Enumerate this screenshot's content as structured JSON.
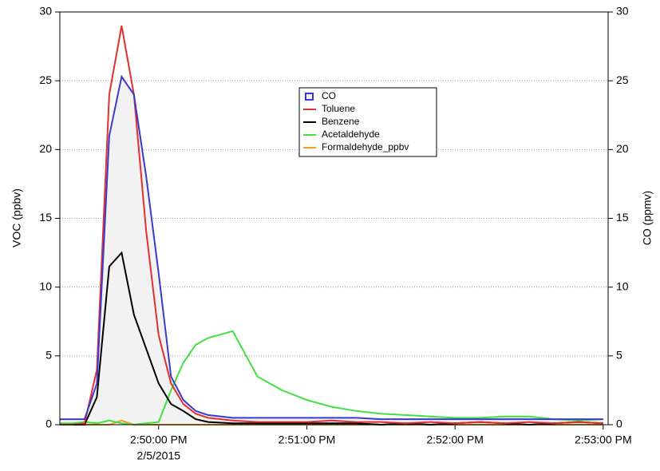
{
  "chart_data": {
    "type": "line",
    "y_label": "VOC (ppbv)",
    "y2_label": "CO (ppmv)",
    "x_date_label": "2/5/2015",
    "x": [
      "2:49:20 PM",
      "2:49:25 PM",
      "2:49:30 PM",
      "2:49:35 PM",
      "2:49:40 PM",
      "2:49:45 PM",
      "2:49:50 PM",
      "2:49:55 PM",
      "2:50:00 PM",
      "2:50:05 PM",
      "2:50:10 PM",
      "2:50:15 PM",
      "2:50:20 PM",
      "2:50:30 PM",
      "2:50:40 PM",
      "2:50:50 PM",
      "2:51:00 PM",
      "2:51:10 PM",
      "2:51:20 PM",
      "2:51:30 PM",
      "2:51:40 PM",
      "2:51:50 PM",
      "2:52:00 PM",
      "2:52:10 PM",
      "2:52:20 PM",
      "2:52:30 PM",
      "2:52:40 PM",
      "2:52:50 PM",
      "2:53:00 PM"
    ],
    "series": [
      {
        "name": "CO",
        "color": "#3a3acc",
        "fill": "#f2f2f2",
        "axis": "y2",
        "values": [
          0.4,
          0.4,
          0.4,
          3,
          21,
          25.3,
          24,
          18,
          11,
          3.5,
          1.8,
          1,
          0.7,
          0.5,
          0.5,
          0.5,
          0.5,
          0.5,
          0.5,
          0.4,
          0.4,
          0.4,
          0.4,
          0.4,
          0.4,
          0.4,
          0.4,
          0.4,
          0.4
        ]
      },
      {
        "name": "Toluene",
        "color": "#e03030",
        "values": [
          0,
          0,
          0.1,
          4,
          24,
          29,
          24,
          14,
          6.5,
          3,
          1.5,
          0.8,
          0.5,
          0.3,
          0.2,
          0.2,
          0.2,
          0.3,
          0.2,
          0.2,
          0.1,
          0.2,
          0.1,
          0.2,
          0.1,
          0.2,
          0.1,
          0.2,
          0.1
        ]
      },
      {
        "name": "Benzene",
        "color": "#000000",
        "values": [
          0,
          0,
          0,
          2,
          11.5,
          12.5,
          8,
          5.5,
          3,
          1.5,
          1,
          0.4,
          0.2,
          0.1,
          0.1,
          0.1,
          0.1,
          0.1,
          0.1,
          0,
          0.1,
          0,
          0.1,
          0.2,
          0.1,
          0,
          0.1,
          0.2,
          0.1
        ]
      },
      {
        "name": "Acetaldehyde",
        "color": "#40e040",
        "values": [
          0.1,
          0.1,
          0.2,
          0.1,
          0.3,
          0.1,
          0,
          0.1,
          0.2,
          2.5,
          4.5,
          5.8,
          6.3,
          6.8,
          3.5,
          2.5,
          1.8,
          1.3,
          1,
          0.8,
          0.7,
          0.6,
          0.5,
          0.5,
          0.6,
          0.6,
          0.4,
          0.3,
          0.4
        ]
      },
      {
        "name": "Formaldehyde_ppbv",
        "color": "#f0a020",
        "values": [
          0,
          0,
          0,
          0,
          0,
          0.3,
          0,
          0,
          0,
          0,
          0,
          0,
          0,
          0,
          0,
          0,
          0,
          0,
          0,
          0,
          0,
          0,
          0,
          0,
          0,
          0,
          0,
          0,
          0
        ]
      }
    ],
    "xlim": [
      "2:49:20 PM",
      "2:53:02 PM"
    ],
    "xticks": [
      "2:50:00 PM",
      "2:51:00 PM",
      "2:52:00 PM",
      "2:53:00 PM"
    ],
    "ylim": [
      0,
      30
    ],
    "yticks": [
      0,
      5,
      10,
      15,
      20,
      25,
      30
    ],
    "y2lim": [
      0,
      30
    ],
    "y2ticks": [
      0,
      5,
      10,
      15,
      20,
      25,
      30
    ],
    "grid": true
  }
}
